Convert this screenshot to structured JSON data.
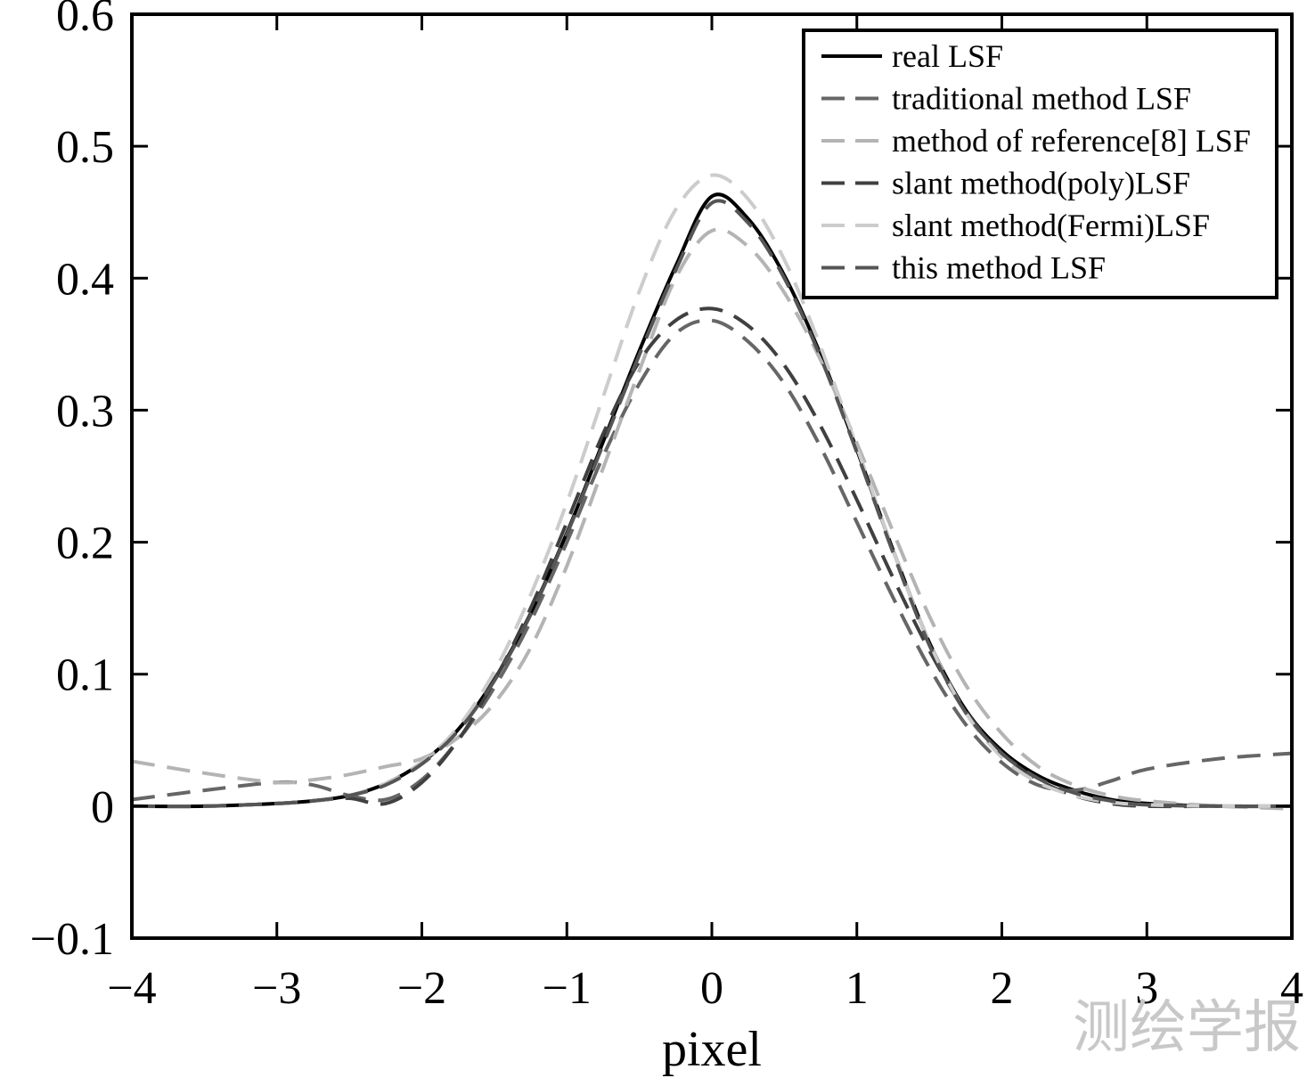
{
  "chart_data": {
    "type": "line",
    "title": "",
    "xlabel": "pixel",
    "ylabel": "",
    "xlim": [
      -4,
      4
    ],
    "ylim": [
      -0.1,
      0.6
    ],
    "xticks": [
      -4,
      -3,
      -2,
      -1,
      0,
      1,
      2,
      3,
      4
    ],
    "xtick_labels": [
      "−4",
      "−3",
      "−2",
      "−1",
      "0",
      "1",
      "2",
      "3",
      "4"
    ],
    "yticks": [
      -0.1,
      0,
      0.1,
      0.2,
      0.3,
      0.4,
      0.5,
      0.6
    ],
    "ytick_labels": [
      "−0.1",
      "0",
      "0.1",
      "0.2",
      "0.3",
      "0.4",
      "0.5",
      "0.6"
    ],
    "grid": false,
    "legend_position": "top-right",
    "x": [
      -4,
      -3.5,
      -3,
      -2.75,
      -2.5,
      -2.25,
      -2,
      -1.75,
      -1.5,
      -1.25,
      -1,
      -0.75,
      -0.5,
      -0.25,
      0,
      0.25,
      0.5,
      0.75,
      1,
      1.25,
      1.5,
      1.75,
      2,
      2.25,
      2.5,
      2.75,
      3,
      3.5,
      4
    ],
    "series": [
      {
        "name": "real LSF",
        "color": "#000000",
        "dash": "solid",
        "values": [
          0.0,
          0.0,
          0.002,
          0.004,
          0.008,
          0.017,
          0.033,
          0.058,
          0.096,
          0.146,
          0.207,
          0.276,
          0.345,
          0.409,
          0.462,
          0.445,
          0.402,
          0.342,
          0.27,
          0.194,
          0.124,
          0.073,
          0.042,
          0.023,
          0.012,
          0.005,
          0.002,
          0.0,
          0.0
        ]
      },
      {
        "name": "traditional method LSF",
        "color": "#666666",
        "dash": "dashed",
        "values": [
          0.005,
          0.012,
          0.018,
          0.016,
          0.008,
          0.005,
          0.02,
          0.05,
          0.09,
          0.14,
          0.2,
          0.265,
          0.32,
          0.358,
          0.368,
          0.352,
          0.32,
          0.272,
          0.215,
          0.158,
          0.105,
          0.062,
          0.033,
          0.016,
          0.012,
          0.019,
          0.028,
          0.036,
          0.04
        ]
      },
      {
        "name": "method of reference[8] LSF",
        "color": "#b4b4b4",
        "dash": "dashed",
        "values": [
          0.034,
          0.025,
          0.018,
          0.02,
          0.024,
          0.03,
          0.036,
          0.052,
          0.078,
          0.12,
          0.182,
          0.256,
          0.33,
          0.4,
          0.436,
          0.424,
          0.389,
          0.338,
          0.275,
          0.208,
          0.144,
          0.092,
          0.055,
          0.03,
          0.016,
          0.008,
          0.004,
          0.0,
          -0.002
        ]
      },
      {
        "name": "slant method(poly)LSF",
        "color": "#404040",
        "dash": "dashed",
        "values": [
          0.0,
          0.0,
          0.002,
          0.004,
          0.006,
          0.002,
          0.018,
          0.05,
          0.095,
          0.15,
          0.215,
          0.282,
          0.337,
          0.368,
          0.377,
          0.364,
          0.334,
          0.288,
          0.232,
          0.173,
          0.118,
          0.072,
          0.04,
          0.02,
          0.008,
          0.002,
          0.0,
          0.0,
          0.0
        ]
      },
      {
        "name": "slant method(Fermi)LSF",
        "color": "#cccccc",
        "dash": "dashed",
        "values": [
          0.0,
          0.0,
          0.002,
          0.004,
          0.008,
          0.017,
          0.033,
          0.06,
          0.102,
          0.16,
          0.23,
          0.31,
          0.39,
          0.452,
          0.478,
          0.46,
          0.414,
          0.348,
          0.272,
          0.194,
          0.124,
          0.071,
          0.037,
          0.018,
          0.008,
          0.003,
          0.001,
          0.0,
          0.0
        ]
      },
      {
        "name": "this method LSF",
        "color": "#555555",
        "dash": "dashed",
        "values": [
          0.0,
          0.0,
          0.002,
          0.004,
          0.008,
          0.016,
          0.032,
          0.057,
          0.095,
          0.145,
          0.206,
          0.274,
          0.342,
          0.406,
          0.457,
          0.442,
          0.4,
          0.34,
          0.268,
          0.192,
          0.122,
          0.071,
          0.04,
          0.021,
          0.01,
          0.004,
          0.001,
          0.0,
          0.0
        ]
      }
    ],
    "watermark": "测绘学报"
  }
}
